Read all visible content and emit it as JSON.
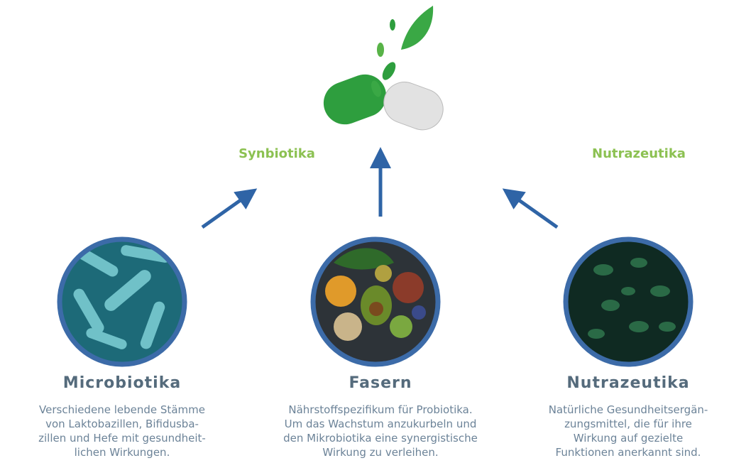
{
  "labels": {
    "left": "Synbiotika",
    "right": "Nutrazeutika"
  },
  "nodes": [
    {
      "title": "Microbiotika",
      "lines": [
        "Verschiedene lebende Stämme",
        "von Laktobazillen, Bifidusba-",
        "zillen und Hefe mit gesundheit-",
        "lichen Wirkungen."
      ]
    },
    {
      "title": "Fasern",
      "lines": [
        "Nährstoffspezifikum für Probiotika.",
        "Um das Wachstum anzukurbeln und",
        "den Mikrobiotika eine synergistische",
        "Wirkung zu verleihen."
      ]
    },
    {
      "title": "Nutrazeutika",
      "lines": [
        "Natürliche Gesundheitsergän-",
        "zungsmittel, die für ihre",
        "Wirkung auf gezielte",
        "Funktionen anerkannt sind."
      ]
    }
  ]
}
